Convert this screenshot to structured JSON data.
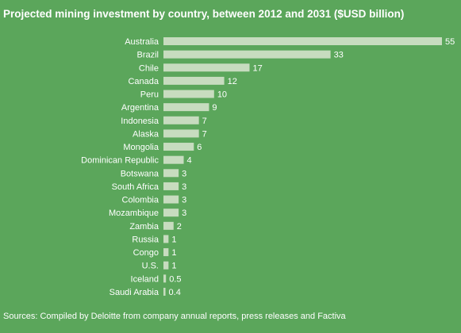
{
  "chart_data": {
    "type": "bar",
    "orientation": "horizontal",
    "title": "Projected mining investment by country, between 2012 and 2031 ($USD billion)",
    "categories": [
      "Australia",
      "Brazil",
      "Chile",
      "Canada",
      "Peru",
      "Argentina",
      "Indonesia",
      "Alaska",
      "Mongolia",
      "Dominican Republic",
      "Botswana",
      "South Africa",
      "Colombia",
      "Mozambique",
      "Zambia",
      "Russia",
      "Congo",
      "U.S.",
      "Iceland",
      "Saudi Arabia"
    ],
    "values": [
      55,
      33,
      17,
      12,
      10,
      9,
      7,
      7,
      6,
      4,
      3,
      3,
      3,
      3,
      2,
      1,
      1,
      1,
      0.5,
      0.4
    ],
    "value_labels": [
      "55",
      "33",
      "17",
      "12",
      "10",
      "9",
      "7",
      "7",
      "6",
      "4",
      "3",
      "3",
      "3",
      "3",
      "2",
      "1",
      "1",
      "1",
      "0.5",
      "0.4"
    ],
    "xlim": [
      0,
      55
    ],
    "grid": false,
    "legend": "none",
    "colors": {
      "background": "#5ba65b",
      "bar": "#c7dcbf",
      "text": "#ffffff"
    }
  },
  "source": "Sources: Compiled by Deloitte from company annual reports, press releases and Factiva"
}
